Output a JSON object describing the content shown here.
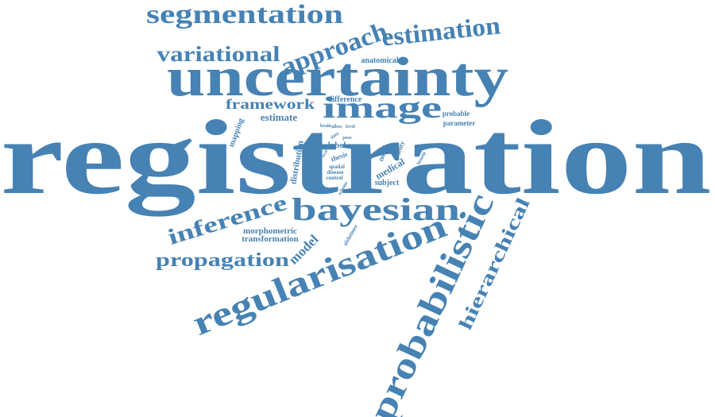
{
  "color": "#4682b4",
  "words": {
    "registration": "registration",
    "uncertainty": "uncertainty",
    "segmentation": "segmentation",
    "approach": "approach",
    "estimation": "estimation",
    "variational": "variational",
    "anatomical": "anatomical",
    "image": "image",
    "framework": "framework",
    "estimate": "estimate",
    "difference": "difference",
    "probable": "probable",
    "parameter": "parameter",
    "mapping": "mapping",
    "brain": "brain",
    "allow": "allow",
    "level": "level",
    "data": "data",
    "pose": "pose",
    "label": "label",
    "distribution": "distribution",
    "novel": "novel",
    "fidelity": "fidelity",
    "benefit": "benefit",
    "thesis": "thesis",
    "medical": "medical",
    "spatial": "spatial",
    "disease": "disease",
    "control": "control",
    "scheme": "scheme",
    "subject": "subject",
    "bayesian": "bayesian",
    "inference": "inference",
    "morphometric": "morphometric",
    "transformation": "transformation",
    "alzheimer": "alzheimer",
    "model": "model",
    "propagation": "propagation",
    "regularisation": "regularisation",
    "probabilistic": "probabilistic",
    "hierarchical": "hierarchical",
    "local": "local"
  }
}
